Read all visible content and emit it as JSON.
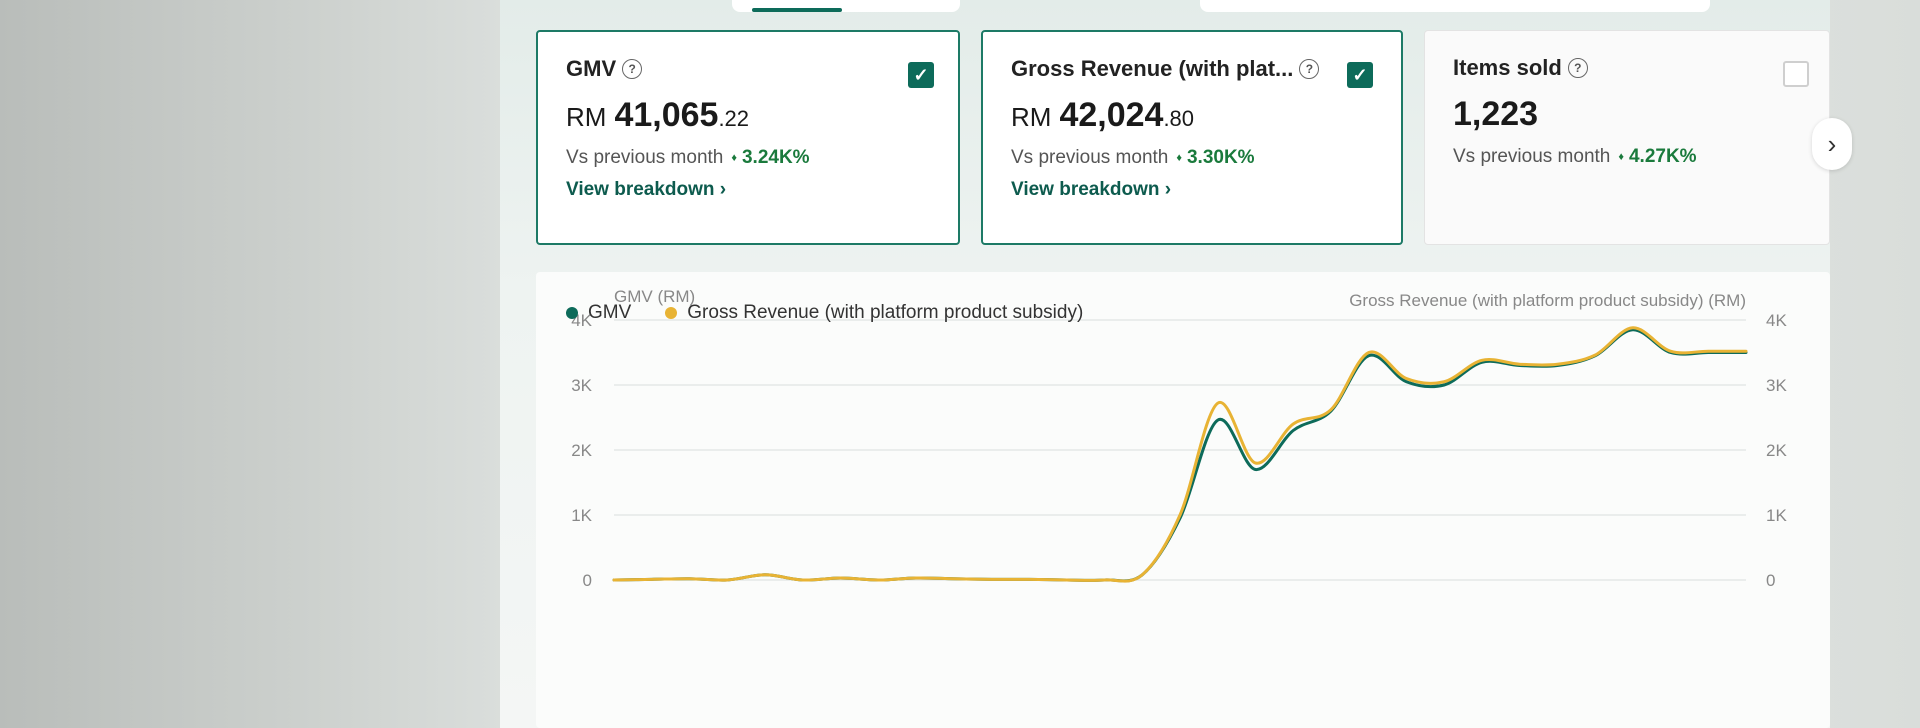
{
  "cards": [
    {
      "title": "GMV",
      "checked": true,
      "currency": "RM",
      "value_main": "41,065",
      "value_decimal": ".22",
      "compare_label": "Vs previous month",
      "delta": "3.24K%",
      "link": "View breakdown ›"
    },
    {
      "title": "Gross Revenue (with plat...",
      "checked": true,
      "currency": "RM",
      "value_main": "42,024",
      "value_decimal": ".80",
      "compare_label": "Vs previous month",
      "delta": "3.30K%",
      "link": "View breakdown ›"
    },
    {
      "title": "Items sold",
      "checked": false,
      "value_main": "1,223",
      "compare_label": "Vs previous month",
      "delta": "4.27K%"
    }
  ],
  "icons": {
    "help": "question-circle-icon",
    "check": "checkmark-icon",
    "next": "chevron-right-icon"
  },
  "colors": {
    "gmv": "#0d6b5a",
    "gross_revenue": "#e8b334",
    "accent": "#0d6b5a",
    "positive": "#1a7a3c"
  },
  "chart_data": {
    "type": "line",
    "legend": [
      "GMV",
      "Gross Revenue (with platform product subsidy)"
    ],
    "y_left_label": "GMV (RM)",
    "y_right_label": "Gross Revenue (with platform product subsidy) (RM)",
    "y_ticks": [
      "0",
      "1K",
      "2K",
      "3K",
      "4K"
    ],
    "ylim": [
      0,
      4000
    ],
    "grid": true,
    "legend_position": "top-left",
    "x": [
      1,
      2,
      3,
      4,
      5,
      6,
      7,
      8,
      9,
      10,
      11,
      12,
      13,
      14,
      15,
      16,
      17,
      18,
      19,
      20,
      21,
      22,
      23,
      24,
      25,
      26,
      27,
      28,
      29,
      30,
      31
    ],
    "series": [
      {
        "name": "GMV",
        "color": "#0d6b5a",
        "values": [
          0,
          10,
          20,
          0,
          80,
          0,
          30,
          0,
          30,
          20,
          10,
          10,
          0,
          0,
          80,
          950,
          2460,
          1700,
          2300,
          2600,
          3450,
          3050,
          3000,
          3350,
          3300,
          3300,
          3450,
          3850,
          3500,
          3500,
          3500
        ]
      },
      {
        "name": "Gross Revenue (with platform product subsidy)",
        "color": "#e8b334",
        "values": [
          0,
          10,
          20,
          0,
          80,
          0,
          30,
          0,
          30,
          20,
          10,
          10,
          0,
          0,
          80,
          1000,
          2720,
          1800,
          2400,
          2620,
          3500,
          3100,
          3050,
          3380,
          3320,
          3320,
          3460,
          3880,
          3520,
          3520,
          3520
        ]
      }
    ]
  }
}
